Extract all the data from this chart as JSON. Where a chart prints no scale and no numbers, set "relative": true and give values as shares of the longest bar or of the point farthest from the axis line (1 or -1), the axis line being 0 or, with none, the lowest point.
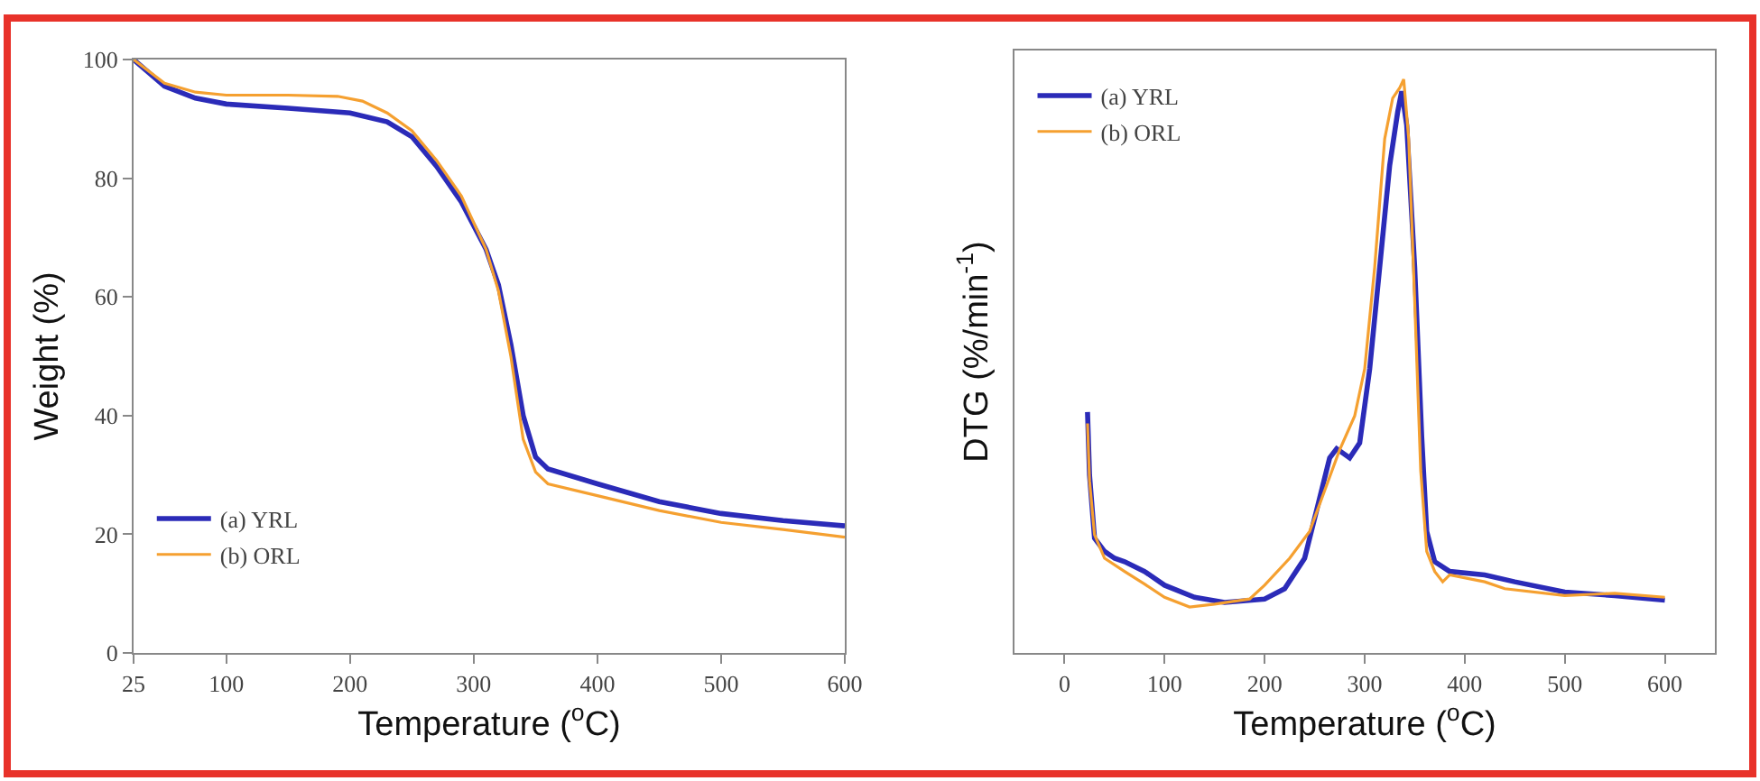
{
  "chart_data": [
    {
      "type": "line",
      "xlabel": "Temperature ($^{o}$C)",
      "ylabel": "Weight (%)",
      "xlim": [
        25,
        600
      ],
      "xticks": [
        25,
        100,
        200,
        300,
        400,
        500,
        600
      ],
      "ylim": [
        0,
        100
      ],
      "yticks": [
        0,
        20,
        40,
        60,
        80,
        100
      ],
      "legend": "bottom left",
      "grid": false,
      "series": [
        {
          "name": "(a) YRL",
          "color": "#2b2bb8",
          "x": [
            25,
            50,
            75,
            100,
            150,
            200,
            230,
            250,
            270,
            290,
            310,
            320,
            330,
            340,
            350,
            360,
            400,
            450,
            500,
            550,
            600
          ],
          "values": [
            100,
            95.5,
            93.5,
            92.5,
            91.8,
            91,
            89.5,
            87,
            82,
            76,
            68,
            62,
            52,
            40,
            33,
            31,
            28.5,
            25.5,
            23.5,
            22.3,
            21.4
          ]
        },
        {
          "name": "(b) ORL",
          "color": "#f5a030",
          "x": [
            25,
            50,
            75,
            100,
            150,
            190,
            210,
            230,
            250,
            270,
            290,
            310,
            320,
            330,
            340,
            350,
            360,
            400,
            450,
            500,
            550,
            600
          ],
          "values": [
            100,
            96,
            94.5,
            94,
            94,
            93.8,
            93,
            91,
            88,
            83,
            77,
            68,
            61,
            50,
            36,
            30.5,
            28.5,
            26.5,
            24,
            22,
            20.8,
            19.5
          ]
        }
      ]
    },
    {
      "type": "line",
      "relative": true,
      "tick_labels": "x",
      "xlabel": "Temperature ($^{o}$C)",
      "ylabel": "DTG (%/min$^{-1}$)",
      "xlim": [
        -50,
        650
      ],
      "xticks": [
        0,
        100,
        200,
        300,
        400,
        500,
        600
      ],
      "legend": "top left",
      "grid": false,
      "series": [
        {
          "name": "(a) YRL",
          "color": "#2b2bb8",
          "x": [
            23,
            25,
            30,
            40,
            50,
            60,
            80,
            100,
            130,
            160,
            200,
            220,
            240,
            255,
            265,
            272,
            285,
            295,
            305,
            315,
            325,
            333,
            337,
            342,
            350,
            357,
            362,
            370,
            385,
            420,
            450,
            500,
            550,
            600
          ],
          "values": [
            0.42,
            0.31,
            0.2,
            0.177,
            0.165,
            0.159,
            0.142,
            0.118,
            0.097,
            0.088,
            0.094,
            0.112,
            0.165,
            0.27,
            0.34,
            0.356,
            0.34,
            0.366,
            0.495,
            0.672,
            0.85,
            0.943,
            0.979,
            0.92,
            0.672,
            0.377,
            0.212,
            0.159,
            0.142,
            0.136,
            0.124,
            0.106,
            0.1,
            0.092
          ]
        },
        {
          "name": "(b) ORL",
          "color": "#f5a030",
          "x": [
            23,
            25,
            30,
            40,
            60,
            80,
            100,
            125,
            150,
            185,
            200,
            225,
            245,
            260,
            275,
            290,
            300,
            310,
            320,
            328,
            335,
            339,
            344,
            350,
            356,
            362,
            370,
            378,
            385,
            420,
            440,
            500,
            550,
            600
          ],
          "values": [
            0.4,
            0.3,
            0.206,
            0.165,
            0.142,
            0.12,
            0.097,
            0.08,
            0.085,
            0.094,
            0.118,
            0.165,
            0.212,
            0.283,
            0.354,
            0.413,
            0.495,
            0.672,
            0.896,
            0.967,
            0.985,
            1,
            0.896,
            0.613,
            0.318,
            0.177,
            0.142,
            0.124,
            0.136,
            0.124,
            0.112,
            0.1,
            0.104,
            0.097
          ]
        }
      ]
    }
  ]
}
